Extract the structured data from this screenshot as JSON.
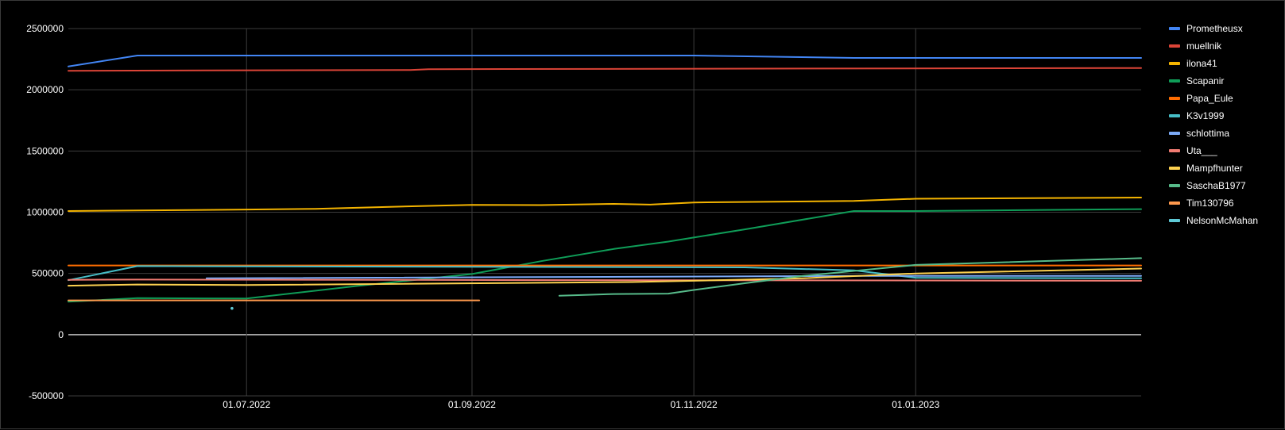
{
  "chart_data": {
    "type": "line",
    "title": "",
    "xlabel": "",
    "ylabel": "",
    "x_axis": {
      "type": "date",
      "range": [
        "2022-05-13",
        "2023-03-04"
      ],
      "ticks": [
        {
          "date": "2022-07-01",
          "label": "01.07.2022"
        },
        {
          "date": "2022-09-01",
          "label": "01.09.2022"
        },
        {
          "date": "2022-11-01",
          "label": "01.11.2022"
        },
        {
          "date": "2023-01-01",
          "label": "01.01.2023"
        }
      ]
    },
    "y_axis": {
      "range": [
        -500000,
        2500000
      ],
      "ticks": [
        -500000,
        0,
        500000,
        1000000,
        1500000,
        2000000,
        2500000
      ],
      "tick_labels": [
        "-500000",
        "0",
        "500000",
        "1000000",
        "1500000",
        "2000000",
        "2500000"
      ]
    },
    "grid": true,
    "legend": "right",
    "series": [
      {
        "name": "Prometheusx",
        "color": "#4285f4",
        "points": [
          [
            "2022-05-13",
            2190000
          ],
          [
            "2022-06-01",
            2280000
          ],
          [
            "2022-11-01",
            2280000
          ],
          [
            "2022-12-15",
            2260000
          ],
          [
            "2023-03-04",
            2260000
          ]
        ]
      },
      {
        "name": "muellnik",
        "color": "#db4437",
        "points": [
          [
            "2022-05-13",
            2155000
          ],
          [
            "2022-08-15",
            2162000
          ],
          [
            "2022-08-20",
            2168000
          ],
          [
            "2023-03-04",
            2178000
          ]
        ]
      },
      {
        "name": "ilona41",
        "color": "#f4b400",
        "points": [
          [
            "2022-05-13",
            1010000
          ],
          [
            "2022-07-01",
            1022000
          ],
          [
            "2022-07-20",
            1028000
          ],
          [
            "2022-08-20",
            1052000
          ],
          [
            "2022-09-01",
            1060000
          ],
          [
            "2022-09-20",
            1058000
          ],
          [
            "2022-10-10",
            1068000
          ],
          [
            "2022-10-20",
            1062000
          ],
          [
            "2022-11-01",
            1080000
          ],
          [
            "2022-12-15",
            1092000
          ],
          [
            "2023-01-01",
            1110000
          ],
          [
            "2023-03-04",
            1120000
          ]
        ]
      },
      {
        "name": "Scapanir",
        "color": "#0f9d58",
        "points": [
          [
            "2022-05-13",
            270000
          ],
          [
            "2022-06-01",
            298000
          ],
          [
            "2022-07-01",
            295000
          ],
          [
            "2022-08-01",
            400000
          ],
          [
            "2022-09-01",
            495000
          ],
          [
            "2022-09-20",
            600000
          ],
          [
            "2022-10-10",
            700000
          ],
          [
            "2022-10-25",
            760000
          ],
          [
            "2022-11-15",
            860000
          ],
          [
            "2022-12-15",
            1010000
          ],
          [
            "2023-01-01",
            1010000
          ],
          [
            "2023-03-04",
            1025000
          ]
        ]
      },
      {
        "name": "Papa_Eule",
        "color": "#ff6d01",
        "points": [
          [
            "2022-05-13",
            565000
          ],
          [
            "2023-03-04",
            565000
          ]
        ]
      },
      {
        "name": "K3v1999",
        "color": "#46bdc6",
        "points": [
          [
            "2022-05-13",
            445000
          ],
          [
            "2022-06-01",
            560000
          ],
          [
            "2022-11-15",
            550000
          ],
          [
            "2022-12-15",
            525000
          ],
          [
            "2023-01-01",
            465000
          ],
          [
            "2023-03-04",
            460000
          ]
        ]
      },
      {
        "name": "schlottima",
        "color": "#7baaf7",
        "points": [
          [
            "2022-06-20",
            460000
          ],
          [
            "2022-12-15",
            480000
          ],
          [
            "2023-01-01",
            480000
          ],
          [
            "2023-03-04",
            480000
          ]
        ]
      },
      {
        "name": "Uta___",
        "color": "#f07b72",
        "points": [
          [
            "2022-05-13",
            448000
          ],
          [
            "2022-06-01",
            450000
          ],
          [
            "2023-03-04",
            440000
          ]
        ]
      },
      {
        "name": "Mampfhunter",
        "color": "#fcd04f",
        "points": [
          [
            "2022-05-13",
            400000
          ],
          [
            "2022-06-01",
            410000
          ],
          [
            "2022-07-01",
            405000
          ],
          [
            "2022-10-15",
            430000
          ],
          [
            "2022-11-01",
            440000
          ],
          [
            "2022-12-01",
            460000
          ],
          [
            "2023-01-01",
            500000
          ],
          [
            "2023-03-04",
            540000
          ]
        ]
      },
      {
        "name": "SaschaB1977",
        "color": "#57bb8a",
        "points": [
          [
            "2022-09-25",
            318000
          ],
          [
            "2022-10-10",
            332000
          ],
          [
            "2022-10-25",
            335000
          ],
          [
            "2022-11-01",
            365000
          ],
          [
            "2022-11-15",
            420000
          ],
          [
            "2022-12-01",
            480000
          ],
          [
            "2023-01-01",
            570000
          ],
          [
            "2023-03-04",
            625000
          ]
        ]
      },
      {
        "name": "Tim130796",
        "color": "#ff994d",
        "points": [
          [
            "2022-05-13",
            280000
          ],
          [
            "2022-09-03",
            280000
          ]
        ]
      },
      {
        "name": "NelsonMcMahan",
        "color": "#5ec9d6",
        "points": [
          [
            "2022-06-27",
            215000
          ]
        ]
      }
    ]
  }
}
